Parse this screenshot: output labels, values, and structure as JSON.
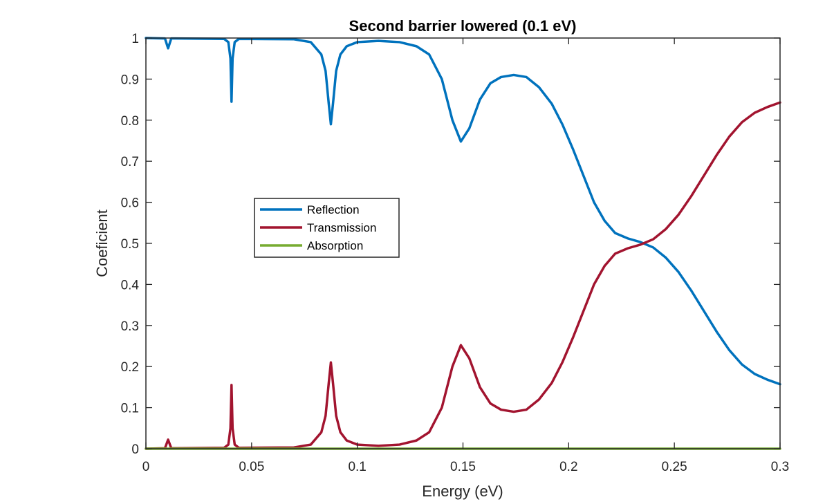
{
  "chart_data": {
    "type": "line",
    "title": "Second barrier lowered (0.1 eV)",
    "xlabel": "Energy (eV)",
    "ylabel": "Coeficient",
    "xlim": [
      0,
      0.3
    ],
    "ylim": [
      0,
      1
    ],
    "xticks": [
      "0",
      "0.05",
      "0.1",
      "0.15",
      "0.2",
      "0.25",
      "0.3"
    ],
    "yticks": [
      "0",
      "0.1",
      "0.2",
      "0.3",
      "0.4",
      "0.5",
      "0.6",
      "0.7",
      "0.8",
      "0.9",
      "1"
    ],
    "grid": false,
    "box": true,
    "legend_position": "center-left",
    "series": [
      {
        "name": "Reflection",
        "color": "#0072BD",
        "points": [
          [
            0,
            1.0
          ],
          [
            0.009,
            0.999
          ],
          [
            0.0105,
            0.975
          ],
          [
            0.012,
            0.999
          ],
          [
            0.037,
            0.998
          ],
          [
            0.039,
            0.99
          ],
          [
            0.04,
            0.95
          ],
          [
            0.0405,
            0.845
          ],
          [
            0.041,
            0.95
          ],
          [
            0.042,
            0.99
          ],
          [
            0.044,
            0.998
          ],
          [
            0.07,
            0.997
          ],
          [
            0.078,
            0.99
          ],
          [
            0.083,
            0.96
          ],
          [
            0.085,
            0.92
          ],
          [
            0.0865,
            0.84
          ],
          [
            0.0875,
            0.79
          ],
          [
            0.0885,
            0.84
          ],
          [
            0.09,
            0.92
          ],
          [
            0.092,
            0.96
          ],
          [
            0.095,
            0.98
          ],
          [
            0.1,
            0.99
          ],
          [
            0.11,
            0.993
          ],
          [
            0.12,
            0.99
          ],
          [
            0.128,
            0.98
          ],
          [
            0.134,
            0.96
          ],
          [
            0.14,
            0.9
          ],
          [
            0.145,
            0.8
          ],
          [
            0.149,
            0.748
          ],
          [
            0.153,
            0.78
          ],
          [
            0.158,
            0.85
          ],
          [
            0.163,
            0.89
          ],
          [
            0.168,
            0.905
          ],
          [
            0.174,
            0.91
          ],
          [
            0.18,
            0.905
          ],
          [
            0.186,
            0.88
          ],
          [
            0.192,
            0.84
          ],
          [
            0.197,
            0.79
          ],
          [
            0.202,
            0.73
          ],
          [
            0.207,
            0.665
          ],
          [
            0.212,
            0.6
          ],
          [
            0.217,
            0.555
          ],
          [
            0.222,
            0.525
          ],
          [
            0.228,
            0.512
          ],
          [
            0.234,
            0.503
          ],
          [
            0.24,
            0.49
          ],
          [
            0.246,
            0.465
          ],
          [
            0.252,
            0.43
          ],
          [
            0.258,
            0.385
          ],
          [
            0.264,
            0.335
          ],
          [
            0.27,
            0.285
          ],
          [
            0.276,
            0.24
          ],
          [
            0.282,
            0.205
          ],
          [
            0.288,
            0.182
          ],
          [
            0.294,
            0.168
          ],
          [
            0.3,
            0.157
          ]
        ]
      },
      {
        "name": "Transmission",
        "color": "#A2142F",
        "points": [
          [
            0,
            0.0
          ],
          [
            0.009,
            0.001
          ],
          [
            0.0105,
            0.022
          ],
          [
            0.012,
            0.001
          ],
          [
            0.037,
            0.002
          ],
          [
            0.039,
            0.01
          ],
          [
            0.04,
            0.05
          ],
          [
            0.0405,
            0.155
          ],
          [
            0.041,
            0.05
          ],
          [
            0.042,
            0.01
          ],
          [
            0.044,
            0.002
          ],
          [
            0.07,
            0.003
          ],
          [
            0.078,
            0.01
          ],
          [
            0.083,
            0.04
          ],
          [
            0.085,
            0.08
          ],
          [
            0.0865,
            0.16
          ],
          [
            0.0875,
            0.21
          ],
          [
            0.0885,
            0.16
          ],
          [
            0.09,
            0.08
          ],
          [
            0.092,
            0.04
          ],
          [
            0.095,
            0.02
          ],
          [
            0.1,
            0.01
          ],
          [
            0.11,
            0.007
          ],
          [
            0.12,
            0.01
          ],
          [
            0.128,
            0.02
          ],
          [
            0.134,
            0.04
          ],
          [
            0.14,
            0.1
          ],
          [
            0.145,
            0.2
          ],
          [
            0.149,
            0.252
          ],
          [
            0.153,
            0.22
          ],
          [
            0.158,
            0.15
          ],
          [
            0.163,
            0.11
          ],
          [
            0.168,
            0.095
          ],
          [
            0.174,
            0.09
          ],
          [
            0.18,
            0.095
          ],
          [
            0.186,
            0.12
          ],
          [
            0.192,
            0.16
          ],
          [
            0.197,
            0.21
          ],
          [
            0.202,
            0.27
          ],
          [
            0.207,
            0.335
          ],
          [
            0.212,
            0.4
          ],
          [
            0.217,
            0.445
          ],
          [
            0.222,
            0.475
          ],
          [
            0.228,
            0.488
          ],
          [
            0.234,
            0.497
          ],
          [
            0.24,
            0.51
          ],
          [
            0.246,
            0.535
          ],
          [
            0.252,
            0.57
          ],
          [
            0.258,
            0.615
          ],
          [
            0.264,
            0.665
          ],
          [
            0.27,
            0.715
          ],
          [
            0.276,
            0.76
          ],
          [
            0.282,
            0.795
          ],
          [
            0.288,
            0.818
          ],
          [
            0.294,
            0.832
          ],
          [
            0.3,
            0.843
          ]
        ]
      },
      {
        "name": "Absorption",
        "color": "#77AC30",
        "points": [
          [
            0,
            0.0
          ],
          [
            0.3,
            0.0
          ]
        ]
      }
    ]
  }
}
